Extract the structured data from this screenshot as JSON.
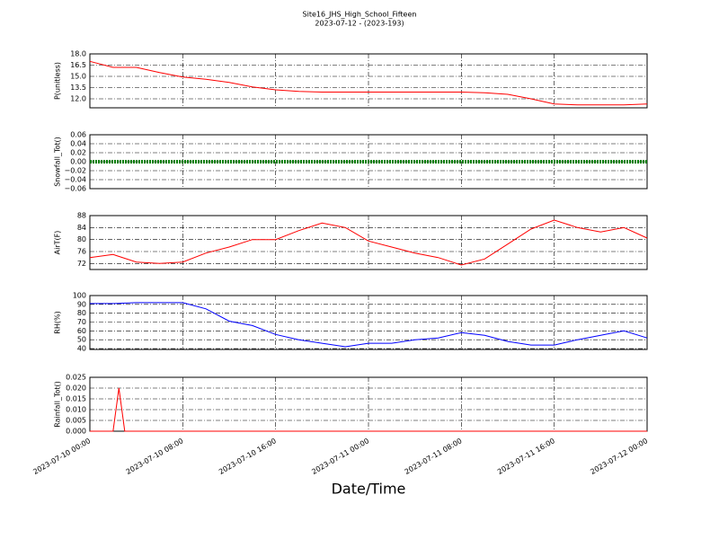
{
  "chart_data": [
    {
      "type": "line",
      "title": "Site16_JHS_High_School_Fifteen",
      "subtitle": "2023-07-12 - (2023-193)",
      "ylabel": "P(unitless)",
      "x": [
        "2023-07-10 00:00",
        "2023-07-10 02:00",
        "2023-07-10 04:00",
        "2023-07-10 06:00",
        "2023-07-10 08:00",
        "2023-07-10 10:00",
        "2023-07-10 12:00",
        "2023-07-10 14:00",
        "2023-07-10 16:00",
        "2023-07-10 18:00",
        "2023-07-10 20:00",
        "2023-07-10 22:00",
        "2023-07-11 00:00",
        "2023-07-11 02:00",
        "2023-07-11 04:00",
        "2023-07-11 06:00",
        "2023-07-11 08:00",
        "2023-07-11 10:00",
        "2023-07-11 12:00",
        "2023-07-11 14:00",
        "2023-07-11 16:00",
        "2023-07-11 18:00",
        "2023-07-11 20:00",
        "2023-07-11 22:00",
        "2023-07-12 00:00"
      ],
      "series": [
        {
          "name": "P",
          "color": "#ff0000",
          "values": [
            17.0,
            16.2,
            16.2,
            15.5,
            14.9,
            14.6,
            14.2,
            13.6,
            13.2,
            13.0,
            12.9,
            12.9,
            12.9,
            12.9,
            12.9,
            12.9,
            12.9,
            12.8,
            12.6,
            12.0,
            11.3,
            11.2,
            11.2,
            11.2,
            11.3
          ]
        }
      ],
      "xlim": [
        "2023-07-10 00:00",
        "2023-07-12 00:00"
      ],
      "xticks": [
        "2023-07-10 00:00",
        "2023-07-10 08:00",
        "2023-07-10 16:00",
        "2023-07-11 00:00",
        "2023-07-11 08:00",
        "2023-07-11 16:00",
        "2023-07-12 00:00"
      ],
      "ylim": [
        10.8,
        18.0
      ],
      "yticks": [
        {
          "value": 12,
          "label": "12.0"
        },
        13.5,
        {
          "value": 15,
          "label": "15.0"
        },
        16.5,
        {
          "value": 18,
          "label": "18.0"
        }
      ],
      "grid": true
    },
    {
      "type": "line",
      "ylabel": "Snowfall_Tot()",
      "x": [
        "2023-07-10 00:00",
        "2023-07-10 02:00",
        "2023-07-10 04:00",
        "2023-07-10 06:00",
        "2023-07-10 08:00",
        "2023-07-10 10:00",
        "2023-07-10 12:00",
        "2023-07-10 14:00",
        "2023-07-10 16:00",
        "2023-07-10 18:00",
        "2023-07-10 20:00",
        "2023-07-10 22:00",
        "2023-07-11 00:00",
        "2023-07-11 02:00",
        "2023-07-11 04:00",
        "2023-07-11 06:00",
        "2023-07-11 08:00",
        "2023-07-11 10:00",
        "2023-07-11 12:00",
        "2023-07-11 14:00",
        "2023-07-11 16:00",
        "2023-07-11 18:00",
        "2023-07-11 20:00",
        "2023-07-11 22:00",
        "2023-07-12 00:00"
      ],
      "series": [
        {
          "name": "Snowfall_Tot",
          "color": "#008000",
          "values": [
            0,
            0,
            0,
            0,
            0,
            0,
            0,
            0,
            0,
            0,
            0,
            0,
            0,
            0,
            0,
            0,
            0,
            0,
            0,
            0,
            0,
            0,
            0,
            0,
            0
          ]
        }
      ],
      "xlim": [
        "2023-07-10 00:00",
        "2023-07-12 00:00"
      ],
      "xticks": [
        "2023-07-10 00:00",
        "2023-07-10 08:00",
        "2023-07-10 16:00",
        "2023-07-11 00:00",
        "2023-07-11 08:00",
        "2023-07-11 16:00",
        "2023-07-12 00:00"
      ],
      "ylim": [
        -0.06,
        0.06
      ],
      "yticks": [
        {
          "value": -0.06,
          "label": "−0.06"
        },
        {
          "value": -0.04,
          "label": "−0.04"
        },
        {
          "value": -0.02,
          "label": "−0.02"
        },
        {
          "value": 0,
          "label": "0.00"
        },
        {
          "value": 0.02,
          "label": "0.02"
        },
        {
          "value": 0.04,
          "label": "0.04"
        },
        {
          "value": 0.06,
          "label": "0.06"
        }
      ],
      "grid": true
    },
    {
      "type": "line",
      "ylabel": "AirT(F)",
      "x": [
        "2023-07-10 00:00",
        "2023-07-10 02:00",
        "2023-07-10 04:00",
        "2023-07-10 06:00",
        "2023-07-10 08:00",
        "2023-07-10 10:00",
        "2023-07-10 12:00",
        "2023-07-10 14:00",
        "2023-07-10 16:00",
        "2023-07-10 18:00",
        "2023-07-10 20:00",
        "2023-07-10 22:00",
        "2023-07-11 00:00",
        "2023-07-11 02:00",
        "2023-07-11 04:00",
        "2023-07-11 06:00",
        "2023-07-11 08:00",
        "2023-07-11 10:00",
        "2023-07-11 12:00",
        "2023-07-11 14:00",
        "2023-07-11 16:00",
        "2023-07-11 18:00",
        "2023-07-11 20:00",
        "2023-07-11 22:00",
        "2023-07-12 00:00"
      ],
      "series": [
        {
          "name": "AirT",
          "color": "#ff0000",
          "values": [
            74.0,
            75.0,
            72.5,
            72.0,
            72.5,
            75.5,
            77.5,
            80.0,
            80.0,
            83.0,
            85.5,
            84.0,
            79.5,
            77.5,
            75.5,
            74.0,
            71.5,
            73.5,
            78.5,
            83.5,
            86.5,
            84.0,
            82.5,
            84.0,
            80.5
          ]
        }
      ],
      "xlim": [
        "2023-07-10 00:00",
        "2023-07-12 00:00"
      ],
      "xticks": [
        "2023-07-10 00:00",
        "2023-07-10 08:00",
        "2023-07-10 16:00",
        "2023-07-11 00:00",
        "2023-07-11 08:00",
        "2023-07-11 16:00",
        "2023-07-12 00:00"
      ],
      "ylim": [
        70,
        88
      ],
      "yticks": [
        72,
        76,
        80,
        84,
        88
      ],
      "grid": true
    },
    {
      "type": "line",
      "ylabel": "RH(%)",
      "x": [
        "2023-07-10 00:00",
        "2023-07-10 02:00",
        "2023-07-10 04:00",
        "2023-07-10 06:00",
        "2023-07-10 08:00",
        "2023-07-10 10:00",
        "2023-07-10 12:00",
        "2023-07-10 14:00",
        "2023-07-10 16:00",
        "2023-07-10 18:00",
        "2023-07-10 20:00",
        "2023-07-10 22:00",
        "2023-07-11 00:00",
        "2023-07-11 02:00",
        "2023-07-11 04:00",
        "2023-07-11 06:00",
        "2023-07-11 08:00",
        "2023-07-11 10:00",
        "2023-07-11 12:00",
        "2023-07-11 14:00",
        "2023-07-11 16:00",
        "2023-07-11 18:00",
        "2023-07-11 20:00",
        "2023-07-11 22:00",
        "2023-07-12 00:00"
      ],
      "series": [
        {
          "name": "RH",
          "color": "#0000ff",
          "values": [
            91,
            91,
            92,
            92,
            92,
            85,
            71,
            66,
            56,
            50,
            46,
            42,
            46,
            46,
            50,
            52,
            58,
            55,
            48,
            44,
            44,
            50,
            55,
            60,
            52
          ]
        }
      ],
      "xlim": [
        "2023-07-10 00:00",
        "2023-07-12 00:00"
      ],
      "xticks": [
        "2023-07-10 00:00",
        "2023-07-10 08:00",
        "2023-07-10 16:00",
        "2023-07-11 00:00",
        "2023-07-11 08:00",
        "2023-07-11 16:00",
        "2023-07-12 00:00"
      ],
      "ylim": [
        39,
        100
      ],
      "yticks": [
        40,
        50,
        60,
        70,
        80,
        90,
        100
      ],
      "grid": true
    },
    {
      "type": "line",
      "ylabel": "Rainfall_Tot()",
      "xlabel": "Date/Time",
      "x": [
        "2023-07-10 00:00",
        "2023-07-10 02:00",
        "2023-07-10 02:30",
        "2023-07-10 03:00",
        "2023-07-12 00:00"
      ],
      "series": [
        {
          "name": "Rainfall_Tot",
          "color": "#ff0000",
          "values": [
            0,
            0,
            0.02,
            0,
            0
          ]
        }
      ],
      "xlim": [
        "2023-07-10 00:00",
        "2023-07-12 00:00"
      ],
      "xticks": [
        "2023-07-10 00:00",
        "2023-07-10 08:00",
        "2023-07-10 16:00",
        "2023-07-11 00:00",
        "2023-07-11 08:00",
        "2023-07-11 16:00",
        "2023-07-12 00:00"
      ],
      "ylim": [
        0,
        0.025
      ],
      "yticks": [
        {
          "value": 0,
          "label": "0.000"
        },
        {
          "value": 0.005,
          "label": "0.005"
        },
        {
          "value": 0.01,
          "label": "0.010"
        },
        {
          "value": 0.015,
          "label": "0.015"
        },
        {
          "value": 0.02,
          "label": "0.020"
        },
        {
          "value": 0.025,
          "label": "0.025"
        }
      ],
      "grid": true
    }
  ]
}
